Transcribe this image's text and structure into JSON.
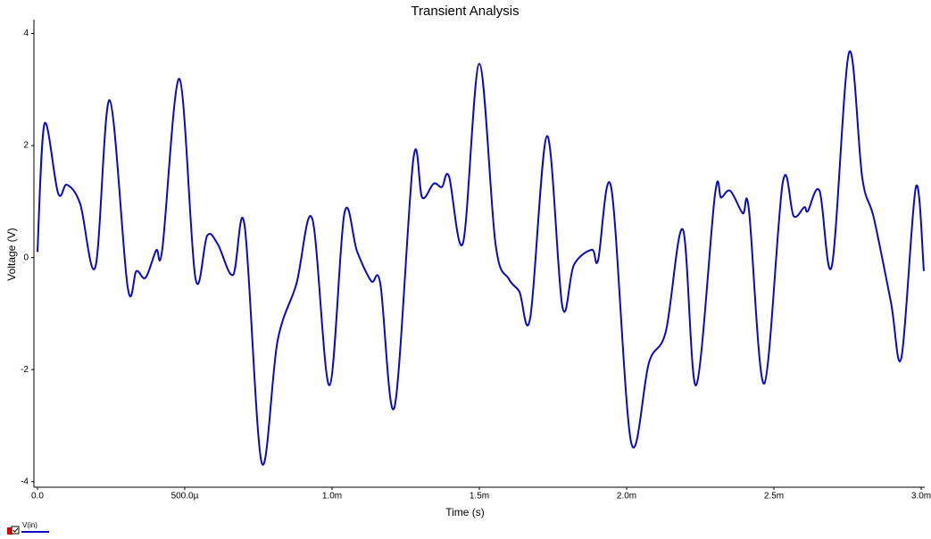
{
  "chart_data": {
    "type": "line",
    "title": "Transient Analysis",
    "x_label": "Time (s)",
    "y_label": "Voltage (V)",
    "x": [
      0,
      2.4e-05,
      7e-05,
      0.0001,
      0.000145,
      0.000197,
      0.000245,
      0.000306,
      0.000336,
      0.000367,
      0.000403,
      0.000424,
      0.000482,
      0.000536,
      0.000576,
      0.000612,
      0.000664,
      0.000703,
      0.000761,
      0.000815,
      0.000879,
      0.000933,
      0.000991,
      0.001042,
      0.001085,
      0.001133,
      0.001164,
      0.001212,
      0.001276,
      0.001306,
      0.001345,
      0.001373,
      0.001397,
      0.001445,
      0.0015,
      0.001555,
      0.0016,
      0.001636,
      0.001673,
      0.00173,
      0.001782,
      0.001821,
      0.001882,
      0.001903,
      0.001948,
      0.002015,
      0.002076,
      0.002133,
      0.002191,
      0.002236,
      0.0023,
      0.002321,
      0.002352,
      0.002394,
      0.002415,
      0.002467,
      0.00253,
      0.002567,
      0.002603,
      0.002615,
      0.002655,
      0.002697,
      0.002755,
      0.0028,
      0.002839,
      0.002897,
      0.002933,
      0.002982,
      0.003009
    ],
    "series": [
      {
        "name": "V(in)",
        "color": "#0a0ac0",
        "values": [
          0.1,
          2.39,
          1.15,
          1.3,
          0.96,
          -0.16,
          2.81,
          -0.52,
          -0.24,
          -0.36,
          0.13,
          0.16,
          3.19,
          -0.36,
          0.39,
          0.24,
          -0.31,
          0.58,
          -3.66,
          -1.49,
          -0.47,
          0.69,
          -2.28,
          0.79,
          0.11,
          -0.42,
          -0.47,
          -2.67,
          1.76,
          1.07,
          1.32,
          1.26,
          1.45,
          0.27,
          3.46,
          0.24,
          -0.38,
          -0.61,
          -1.07,
          2.17,
          -0.88,
          -0.13,
          0.14,
          -0.05,
          1.24,
          -3.29,
          -1.87,
          -1.32,
          0.5,
          -2.28,
          1.13,
          1.07,
          1.19,
          0.79,
          0.86,
          -2.25,
          1.34,
          0.74,
          0.9,
          0.83,
          1.19,
          -0.14,
          3.66,
          1.42,
          0.71,
          -0.79,
          -1.78,
          1.26,
          -0.24
        ]
      }
    ],
    "xlim": [
      -1.2e-05,
      0.003009
    ],
    "ylim": [
      -4.1,
      4.2
    ],
    "xticks": [
      {
        "value": 0,
        "label": "0.0"
      },
      {
        "value": 0.0005,
        "label": "500.0µ"
      },
      {
        "value": 0.001,
        "label": "1.0m"
      },
      {
        "value": 0.0015,
        "label": "1.5m"
      },
      {
        "value": 0.002,
        "label": "2.0m"
      },
      {
        "value": 0.0025,
        "label": "2.5m"
      },
      {
        "value": 0.003,
        "label": "3.0m"
      }
    ],
    "yticks": [
      4,
      2,
      0,
      -2,
      -4
    ],
    "grid": false
  }
}
